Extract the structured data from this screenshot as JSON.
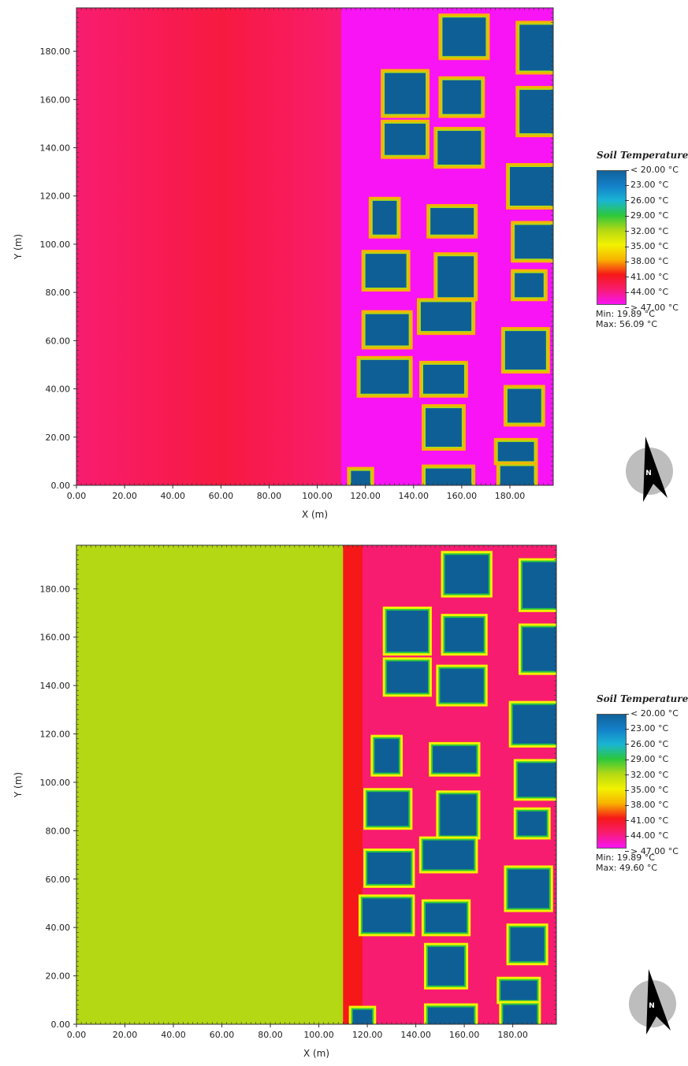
{
  "colors": {
    "scale": [
      "#10629a",
      "#1480c9",
      "#19b5d4",
      "#2cc83c",
      "#b4d814",
      "#f2f200",
      "#f8b200",
      "#f61818",
      "#f81c70",
      "#f814f4"
    ],
    "building": "#0f5f97",
    "compass_disc": "#bdbdbd",
    "compass_arrow": "#000000"
  },
  "legend": {
    "title": "Soil Temperature",
    "labels": [
      "< 20.00 °C",
      "23.00  °C",
      "26.00  °C",
      "29.00  °C",
      "32.00  °C",
      "35.00  °C",
      "38.00  °C",
      "41.00  °C",
      "44.00  °C",
      "> 47.00 °C"
    ]
  },
  "north_label": "N",
  "chart_data": [
    {
      "type": "heatmap",
      "variable": "Soil Temperature",
      "unit": "°C",
      "xlabel": "X (m)",
      "ylabel": "Y (m)",
      "xlim": [
        0,
        198
      ],
      "ylim": [
        0,
        198
      ],
      "x_ticks": [
        "0.00",
        "20.00",
        "40.00",
        "60.00",
        "80.00",
        "100.00",
        "120.00",
        "140.00",
        "160.00",
        "180.00"
      ],
      "y_ticks": [
        "0.00",
        "20.00",
        "40.00",
        "60.00",
        "80.00",
        "100.00",
        "120.00",
        "140.00",
        "160.00",
        "180.00"
      ],
      "min_label": "Min: 19.89 °C",
      "max_label": "Max: 56.09 °C",
      "min": 19.89,
      "max": 56.09,
      "open_area": {
        "x_to": 110,
        "temperature_range": [
          42,
          44
        ],
        "description": "uniform hot soil in open west half"
      },
      "street_band": {
        "x_from": 110,
        "x_to": 118,
        "temperature": 47
      },
      "buildings": [
        [
          152,
          178,
          170,
          194
        ],
        [
          184,
          172,
          198,
          191
        ],
        [
          128,
          154,
          145,
          171
        ],
        [
          152,
          154,
          168,
          168
        ],
        [
          128,
          137,
          145,
          150
        ],
        [
          150,
          133,
          168,
          147
        ],
        [
          184,
          146,
          198,
          164
        ],
        [
          123,
          104,
          133,
          118
        ],
        [
          147,
          104,
          165,
          115
        ],
        [
          180,
          116,
          198,
          132
        ],
        [
          182,
          94,
          198,
          108
        ],
        [
          120,
          82,
          137,
          96
        ],
        [
          150,
          78,
          165,
          95
        ],
        [
          182,
          78,
          194,
          88
        ],
        [
          143,
          64,
          164,
          76
        ],
        [
          120,
          58,
          138,
          71
        ],
        [
          178,
          48,
          195,
          64
        ],
        [
          118,
          38,
          138,
          52
        ],
        [
          144,
          38,
          161,
          50
        ],
        [
          179,
          26,
          193,
          40
        ],
        [
          145,
          16,
          160,
          32
        ],
        [
          175,
          10,
          190,
          18
        ],
        [
          176,
          0,
          190,
          8
        ],
        [
          114,
          0,
          122,
          6
        ],
        [
          145,
          0,
          164,
          7
        ]
      ]
    },
    {
      "type": "heatmap",
      "variable": "Soil Temperature",
      "unit": "°C",
      "xlabel": "X (m)",
      "ylabel": "Y (m)",
      "xlim": [
        0,
        198
      ],
      "ylim": [
        0,
        198
      ],
      "x_ticks": [
        "0.00",
        "20.00",
        "40.00",
        "60.00",
        "80.00",
        "100.00",
        "120.00",
        "140.00",
        "160.00",
        "180.00"
      ],
      "y_ticks": [
        "0.00",
        "20.00",
        "40.00",
        "60.00",
        "80.00",
        "100.00",
        "120.00",
        "140.00",
        "160.00",
        "180.00"
      ],
      "min_label": "Min: 19.89 °C",
      "max_label": "Max: 49.60 °C",
      "min": 19.89,
      "max": 49.6,
      "open_area": {
        "x_to": 110,
        "temperature_range": [
          31,
          33
        ],
        "description": "uniform green soil in open west half"
      },
      "street_band": {
        "x_from": 110,
        "x_to": 118,
        "temperature": 45
      },
      "buildings": [
        [
          152,
          178,
          170,
          194
        ],
        [
          184,
          172,
          198,
          191
        ],
        [
          128,
          154,
          145,
          171
        ],
        [
          152,
          154,
          168,
          168
        ],
        [
          128,
          137,
          145,
          150
        ],
        [
          150,
          133,
          168,
          147
        ],
        [
          184,
          146,
          198,
          164
        ],
        [
          123,
          104,
          133,
          118
        ],
        [
          147,
          104,
          165,
          115
        ],
        [
          180,
          116,
          198,
          132
        ],
        [
          182,
          94,
          198,
          108
        ],
        [
          120,
          82,
          137,
          96
        ],
        [
          150,
          78,
          165,
          95
        ],
        [
          182,
          78,
          194,
          88
        ],
        [
          143,
          64,
          164,
          76
        ],
        [
          120,
          58,
          138,
          71
        ],
        [
          178,
          48,
          195,
          64
        ],
        [
          118,
          38,
          138,
          52
        ],
        [
          144,
          38,
          161,
          50
        ],
        [
          179,
          26,
          193,
          40
        ],
        [
          145,
          16,
          160,
          32
        ],
        [
          175,
          10,
          190,
          18
        ],
        [
          176,
          0,
          190,
          8
        ],
        [
          114,
          0,
          122,
          6
        ],
        [
          145,
          0,
          164,
          7
        ]
      ]
    }
  ]
}
